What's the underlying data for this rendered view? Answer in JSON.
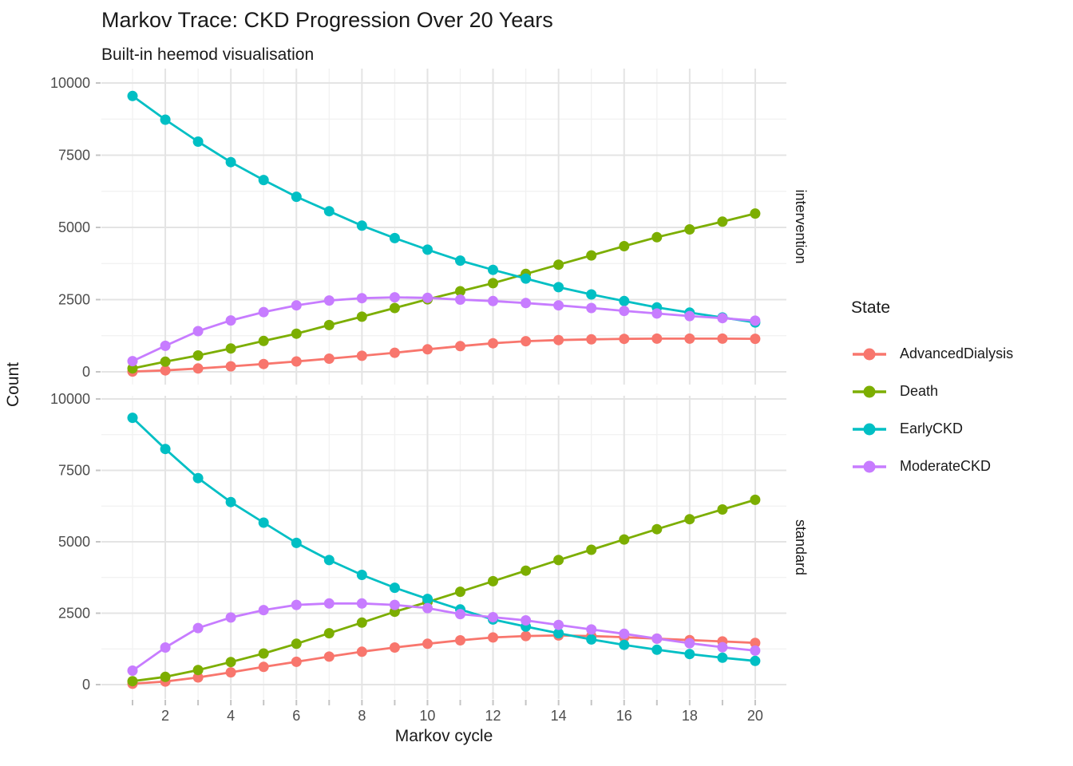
{
  "title": "Markov Trace: CKD Progression Over 20 Years",
  "subtitle": "Built-in heemod visualisation",
  "chart_data": {
    "type": "line",
    "title": "Markov Trace: CKD Progression Over 20 Years",
    "subtitle": "Built-in heemod visualisation",
    "xlabel": "Markov cycle",
    "ylabel": "Count",
    "x": [
      1,
      2,
      3,
      4,
      5,
      6,
      7,
      8,
      9,
      10,
      11,
      12,
      13,
      14,
      15,
      16,
      17,
      18,
      19,
      20
    ],
    "xticks": [
      2,
      4,
      6,
      8,
      10,
      12,
      14,
      16,
      18,
      20
    ],
    "yticks": [
      0,
      2500,
      5000,
      7500,
      10000
    ],
    "yminor": [
      1250,
      3750,
      6250,
      8750
    ],
    "xminor": [
      1,
      3,
      5,
      7,
      9,
      11,
      13,
      15,
      17,
      19
    ],
    "ylim": [
      0,
      10000
    ],
    "grid": "major+minor on white background",
    "legend": {
      "title": "State",
      "position": "right"
    },
    "colors": {
      "AdvancedDialysis": "#F8766D",
      "Death": "#7CAE00",
      "EarlyCKD": "#00BFC4",
      "ModerateCKD": "#C77CFF"
    },
    "facets": [
      {
        "label": "intervention",
        "series": [
          {
            "name": "AdvancedDialysis",
            "color": "#F8766D",
            "values": [
              10,
              50,
              115,
              190,
              270,
              360,
              455,
              555,
              660,
              780,
              890,
              990,
              1060,
              1100,
              1125,
              1140,
              1148,
              1150,
              1150,
              1145
            ]
          },
          {
            "name": "Death",
            "color": "#7CAE00",
            "values": [
              120,
              350,
              565,
              810,
              1070,
              1320,
              1620,
              1910,
              2210,
              2510,
              2790,
              3070,
              3390,
              3710,
              4030,
              4350,
              4660,
              4930,
              5200,
              5480
            ]
          },
          {
            "name": "EarlyCKD",
            "color": "#00BFC4",
            "values": [
              9550,
              8730,
              7970,
              7260,
              6640,
              6060,
              5560,
              5060,
              4630,
              4230,
              3850,
              3530,
              3230,
              2930,
              2680,
              2450,
              2230,
              2050,
              1880,
              1710
            ]
          },
          {
            "name": "ModerateCKD",
            "color": "#C77CFF",
            "values": [
              370,
              900,
              1410,
              1780,
              2070,
              2300,
              2470,
              2550,
              2580,
              2560,
              2500,
              2450,
              2380,
              2300,
              2210,
              2110,
              2020,
              1930,
              1860,
              1770
            ]
          }
        ]
      },
      {
        "label": "standard",
        "series": [
          {
            "name": "AdvancedDialysis",
            "color": "#F8766D",
            "values": [
              30,
              110,
              250,
              430,
              620,
              800,
              980,
              1150,
              1300,
              1430,
              1550,
              1650,
              1700,
              1720,
              1700,
              1660,
              1610,
              1560,
              1510,
              1460
            ]
          },
          {
            "name": "Death",
            "color": "#7CAE00",
            "values": [
              120,
              270,
              510,
              790,
              1090,
              1430,
              1800,
              2170,
              2550,
              2890,
              3250,
              3620,
              3990,
              4360,
              4720,
              5080,
              5440,
              5790,
              6130,
              6470
            ]
          },
          {
            "name": "EarlyCKD",
            "color": "#00BFC4",
            "values": [
              9340,
              8250,
              7230,
              6390,
              5670,
              4960,
              4360,
              3840,
              3390,
              3000,
              2630,
              2280,
              2030,
              1800,
              1580,
              1390,
              1220,
              1070,
              940,
              830
            ]
          },
          {
            "name": "ModerateCKD",
            "color": "#C77CFF",
            "values": [
              490,
              1300,
              1980,
              2350,
              2610,
              2790,
              2840,
              2840,
              2790,
              2680,
              2470,
              2360,
              2250,
              2090,
              1930,
              1780,
              1610,
              1450,
              1310,
              1190
            ]
          }
        ]
      }
    ],
    "style": {
      "grid_major": "#E4E4E4",
      "grid_minor": "#F1F1F1",
      "tick_color": "#C4C4C4",
      "tick_label_color": "#4D4D4D",
      "strip_color": "#1A1A1A"
    }
  }
}
